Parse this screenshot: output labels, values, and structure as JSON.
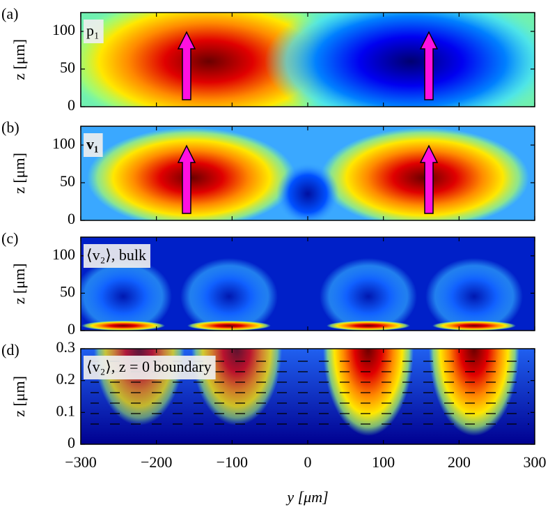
{
  "chart_data": [
    {
      "type": "heatmap",
      "panel_label": "(a)",
      "annotation": "p₁",
      "ylabel": "z [μm]",
      "xlim": [
        -300,
        300
      ],
      "xticks": [
        -300,
        -200,
        -100,
        0,
        100,
        200,
        300
      ],
      "ylim": [
        0,
        125
      ],
      "yticks": [
        0,
        50,
        100
      ]
    },
    {
      "type": "heatmap",
      "panel_label": "(b)",
      "annotation": "v₁",
      "ylabel": "z [μm]",
      "xlim": [
        -300,
        300
      ],
      "xticks": [
        -300,
        -200,
        -100,
        0,
        100,
        200,
        300
      ],
      "ylim": [
        0,
        125
      ],
      "yticks": [
        0,
        50,
        100
      ]
    },
    {
      "type": "heatmap",
      "panel_label": "(c)",
      "annotation": "⟨v₂⟩, bulk",
      "ylabel": "z [μm]",
      "xlim": [
        -300,
        300
      ],
      "xticks": [
        -300,
        -200,
        -100,
        0,
        100,
        200,
        300
      ],
      "ylim": [
        0,
        125
      ],
      "yticks": [
        0,
        50,
        100
      ]
    },
    {
      "type": "heatmap",
      "panel_label": "(d)",
      "annotation": "⟨v₂⟩, z = 0 boundary",
      "ylabel": "z [μm]",
      "xlabel": "y [μm]",
      "xlim": [
        -300,
        300
      ],
      "xticks": [
        {
          "value": -300,
          "label": "−300"
        },
        {
          "value": -200,
          "label": "−200"
        },
        {
          "value": -100,
          "label": "−100"
        },
        0,
        100,
        200,
        300
      ],
      "ylim": [
        0,
        0.3
      ],
      "yticks": [
        0,
        0.1,
        0.2,
        0.3
      ]
    }
  ]
}
